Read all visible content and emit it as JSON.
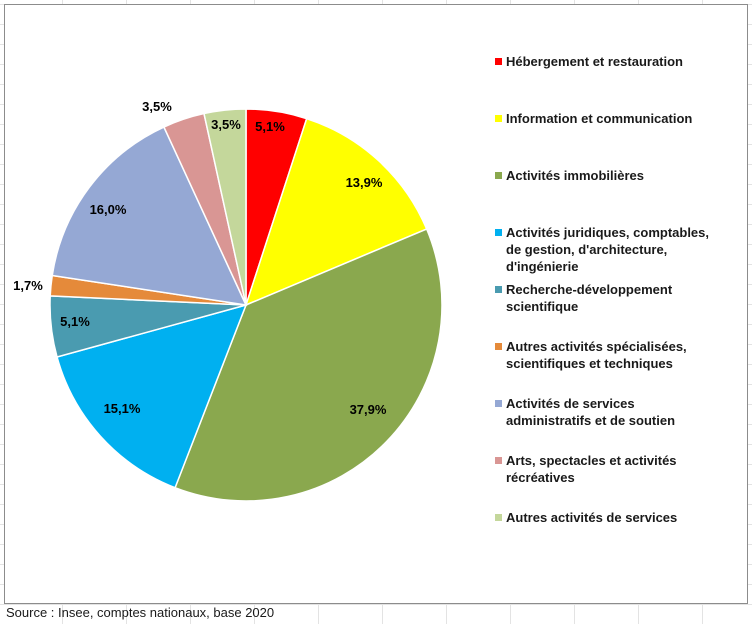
{
  "chart_data": {
    "type": "pie",
    "title": "",
    "start_angle_deg": 0,
    "direction": "clockwise",
    "legend_position": "right",
    "slices": [
      {
        "label": "Hébergement et restauration",
        "value": 5.1,
        "value_label": "5,1%",
        "color": "#ff0000"
      },
      {
        "label": "Information et communication",
        "value": 13.9,
        "value_label": "13,9%",
        "color": "#ffff00"
      },
      {
        "label": "Activités immobilières",
        "value": 37.9,
        "value_label": "37,9%",
        "color": "#8aa84e"
      },
      {
        "label": "Activités juridiques, comptables, de gestion, d'architecture, d'ingénierie",
        "value": 15.1,
        "value_label": "15,1%",
        "color": "#00b0f0"
      },
      {
        "label": "Recherche-développement scientifique",
        "value": 5.1,
        "value_label": "5,1%",
        "color": "#4a9bb0"
      },
      {
        "label": "Autres activités spécialisées, scientifiques et techniques",
        "value": 1.7,
        "value_label": "1,7%",
        "color": "#e58a3a"
      },
      {
        "label": "Activités de services administratifs et de soutien",
        "value": 16.0,
        "value_label": "16,0%",
        "color": "#95a8d4"
      },
      {
        "label": "Arts, spectacles et activités récréatives",
        "value": 3.5,
        "value_label": "3,5%",
        "color": "#d99694"
      },
      {
        "label": "Autres activités de services",
        "value": 3.5,
        "value_label": "3,5%",
        "color": "#c4d79b"
      }
    ]
  },
  "legend": {
    "items": [
      {
        "text": "Hébergement et restauration",
        "color": "#ff0000"
      },
      {
        "text": "Information et communication",
        "color": "#ffff00"
      },
      {
        "text": "Activités immobilières",
        "color": "#8aa84e"
      },
      {
        "text": "Activités juridiques, comptables,\nde gestion, d'architecture,\nd'ingénierie",
        "color": "#00b0f0"
      },
      {
        "text": "Recherche-développement\nscientifique",
        "color": "#4a9bb0"
      },
      {
        "text": "Autres activités spécialisées,\nscientifiques et techniques",
        "color": "#e58a3a"
      },
      {
        "text": "Activités de services\nadministratifs et de soutien",
        "color": "#95a8d4"
      },
      {
        "text": "Arts, spectacles et activités\nrécréatives",
        "color": "#d99694"
      },
      {
        "text": "Autres activités de services",
        "color": "#c4d79b"
      }
    ]
  },
  "footer": {
    "source": "Source : Insee, comptes nationaux, base 2020"
  }
}
